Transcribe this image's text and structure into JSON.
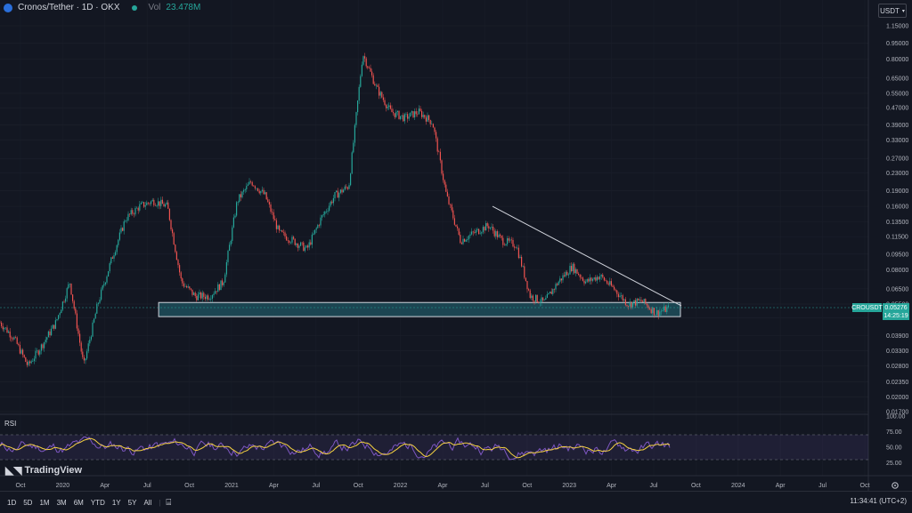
{
  "header": {
    "symbol": "Cronos/Tether · 1D · OKX",
    "vol_label": "Vol",
    "vol_value": "23.478M"
  },
  "currency": "USDT",
  "price_axis": [
    "1.15000",
    "0.95000",
    "0.80000",
    "0.65000",
    "0.55000",
    "0.47000",
    "0.39000",
    "0.33000",
    "0.27000",
    "0.23000",
    "0.19000",
    "0.16000",
    "0.13500",
    "0.11500",
    "0.09500",
    "0.08000",
    "0.06500",
    "0.05500",
    "0.04750",
    "0.03900",
    "0.03300",
    "0.02800",
    "0.02350",
    "0.02000",
    "0.01700"
  ],
  "price_tag": {
    "symbol": "CROUSDT",
    "price": "0.05276",
    "countdown": "14:25:19"
  },
  "rsi": {
    "title": "RSI",
    "levels": [
      "100.00",
      "75.00",
      "50.00",
      "25.00"
    ]
  },
  "time_axis": [
    "Oct",
    "2020",
    "Apr",
    "Jul",
    "Oct",
    "2021",
    "Apr",
    "Jul",
    "Oct",
    "2022",
    "Apr",
    "Jul",
    "Oct",
    "2023",
    "Apr",
    "Jul",
    "Oct",
    "2024",
    "Apr",
    "Jul",
    "Oct"
  ],
  "branding": "TradingView",
  "timeframes": [
    "1D",
    "5D",
    "1M",
    "3M",
    "6M",
    "YTD",
    "1Y",
    "5Y",
    "All"
  ],
  "clock": "11:34:41 (UTC+2)",
  "colors": {
    "up": "#26a69a",
    "down": "#ef5350",
    "zone": "#1f4e5a",
    "rsi": "#7e57c2",
    "rsi_ma": "#f5d142"
  },
  "chart_data": {
    "type": "candlestick",
    "scale": "log",
    "pair": "CROUSDT",
    "close_path": [
      {
        "t": "2019-09",
        "p": 0.045
      },
      {
        "t": "2019-10",
        "p": 0.038
      },
      {
        "t": "2019-11",
        "p": 0.028
      },
      {
        "t": "2019-12",
        "p": 0.035
      },
      {
        "t": "2020-01",
        "p": 0.045
      },
      {
        "t": "2020-02",
        "p": 0.07
      },
      {
        "t": "2020-03",
        "p": 0.028
      },
      {
        "t": "2020-04",
        "p": 0.055
      },
      {
        "t": "2020-05",
        "p": 0.09
      },
      {
        "t": "2020-06",
        "p": 0.14
      },
      {
        "t": "2020-07",
        "p": 0.16
      },
      {
        "t": "2020-08",
        "p": 0.17
      },
      {
        "t": "2020-09",
        "p": 0.16
      },
      {
        "t": "2020-10",
        "p": 0.07
      },
      {
        "t": "2020-11",
        "p": 0.06
      },
      {
        "t": "2020-12",
        "p": 0.06
      },
      {
        "t": "2021-01",
        "p": 0.07
      },
      {
        "t": "2021-02",
        "p": 0.17
      },
      {
        "t": "2021-03",
        "p": 0.21
      },
      {
        "t": "2021-04",
        "p": 0.18
      },
      {
        "t": "2021-05",
        "p": 0.12
      },
      {
        "t": "2021-06",
        "p": 0.11
      },
      {
        "t": "2021-07",
        "p": 0.1
      },
      {
        "t": "2021-08",
        "p": 0.14
      },
      {
        "t": "2021-09",
        "p": 0.18
      },
      {
        "t": "2021-10",
        "p": 0.2
      },
      {
        "t": "2021-11",
        "p": 0.85
      },
      {
        "t": "2021-12",
        "p": 0.58
      },
      {
        "t": "2022-01",
        "p": 0.45
      },
      {
        "t": "2022-02",
        "p": 0.42
      },
      {
        "t": "2022-03",
        "p": 0.45
      },
      {
        "t": "2022-04",
        "p": 0.4
      },
      {
        "t": "2022-05",
        "p": 0.18
      },
      {
        "t": "2022-06",
        "p": 0.11
      },
      {
        "t": "2022-07",
        "p": 0.12
      },
      {
        "t": "2022-08",
        "p": 0.13
      },
      {
        "t": "2022-09",
        "p": 0.11
      },
      {
        "t": "2022-10",
        "p": 0.105
      },
      {
        "t": "2022-11",
        "p": 0.06
      },
      {
        "t": "2022-12",
        "p": 0.056
      },
      {
        "t": "2023-01",
        "p": 0.07
      },
      {
        "t": "2023-02",
        "p": 0.083
      },
      {
        "t": "2023-03",
        "p": 0.07
      },
      {
        "t": "2023-04",
        "p": 0.075
      },
      {
        "t": "2023-05",
        "p": 0.065
      },
      {
        "t": "2023-06",
        "p": 0.055
      },
      {
        "t": "2023-07",
        "p": 0.057
      },
      {
        "t": "2023-08",
        "p": 0.05
      },
      {
        "t": "2023-09",
        "p": 0.0528
      }
    ],
    "support_zone": {
      "low": 0.048,
      "high": 0.056,
      "from": "2020-04",
      "to": "2023-09"
    },
    "trendline": [
      {
        "t": "2022-08",
        "p": 0.16
      },
      {
        "t": "2023-09",
        "p": 0.054
      }
    ],
    "rsi_range": [
      0,
      100
    ],
    "rsi_band": [
      30,
      70
    ]
  }
}
